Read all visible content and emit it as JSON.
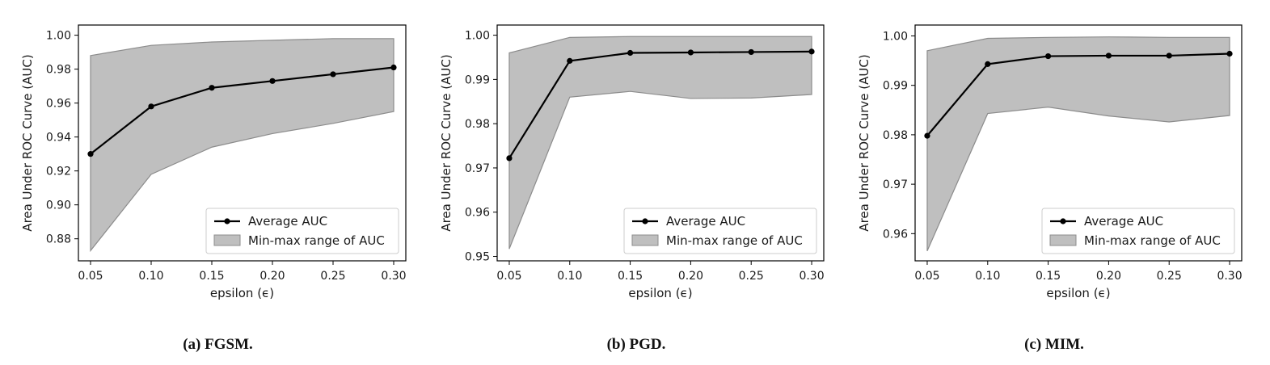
{
  "figure": {
    "captions": [
      "(a) FGSM.",
      "(b) PGD.",
      "(c) MIM."
    ]
  },
  "colors": {
    "line": "#000000",
    "band_fill": "#bfbfbf",
    "band_stroke": "#8c8c8c"
  },
  "chart_data": [
    {
      "type": "area",
      "caption": "(a) FGSM.",
      "xlabel": "epsilon (ϵ)",
      "ylabel": "Area Under ROC Curve (AUC)",
      "x": [
        0.05,
        0.1,
        0.15,
        0.2,
        0.25,
        0.3
      ],
      "xticks": [
        "0.05",
        "0.10",
        "0.15",
        "0.20",
        "0.25",
        "0.30"
      ],
      "yticks": [
        "0.88",
        "0.90",
        "0.92",
        "0.94",
        "0.96",
        "0.98",
        "1.00"
      ],
      "ytick_values": [
        0.88,
        0.9,
        0.92,
        0.94,
        0.96,
        0.98,
        1.0
      ],
      "xlim": [
        0.04,
        0.31
      ],
      "ylim": [
        0.867,
        1.006
      ],
      "legend_position": "bottom-right",
      "series": [
        {
          "name": "Average AUC",
          "kind": "line",
          "values": [
            0.93,
            0.958,
            0.969,
            0.973,
            0.977,
            0.981
          ]
        },
        {
          "name": "Min-max range of AUC",
          "kind": "band",
          "min": [
            0.873,
            0.918,
            0.934,
            0.942,
            0.948,
            0.955
          ],
          "max": [
            0.988,
            0.994,
            0.996,
            0.997,
            0.998,
            0.998
          ]
        }
      ]
    },
    {
      "type": "area",
      "caption": "(b) PGD.",
      "xlabel": "epsilon (ϵ)",
      "ylabel": "Area Under ROC Curve (AUC)",
      "x": [
        0.05,
        0.1,
        0.15,
        0.2,
        0.25,
        0.3
      ],
      "xticks": [
        "0.05",
        "0.10",
        "0.15",
        "0.20",
        "0.25",
        "0.30"
      ],
      "yticks": [
        "0.95",
        "0.96",
        "0.97",
        "0.98",
        "0.99",
        "1.00"
      ],
      "ytick_values": [
        0.95,
        0.96,
        0.97,
        0.98,
        0.99,
        1.0
      ],
      "xlim": [
        0.04,
        0.31
      ],
      "ylim": [
        0.949,
        1.0023
      ],
      "legend_position": "bottom-right",
      "series": [
        {
          "name": "Average AUC",
          "kind": "line",
          "values": [
            0.9722,
            0.9942,
            0.996,
            0.9961,
            0.9962,
            0.9963
          ]
        },
        {
          "name": "Min-max range of AUC",
          "kind": "band",
          "min": [
            0.9517,
            0.986,
            0.9873,
            0.9857,
            0.9858,
            0.9866
          ],
          "max": [
            0.996,
            0.9995,
            0.9997,
            0.9997,
            0.9997,
            0.9997
          ]
        }
      ]
    },
    {
      "type": "area",
      "caption": "(c) MIM.",
      "xlabel": "epsilon (ϵ)",
      "ylabel": "Area Under ROC Curve (AUC)",
      "x": [
        0.05,
        0.1,
        0.15,
        0.2,
        0.25,
        0.3
      ],
      "xticks": [
        "0.05",
        "0.10",
        "0.15",
        "0.20",
        "0.25",
        "0.30"
      ],
      "yticks": [
        "0.96",
        "0.97",
        "0.98",
        "0.99",
        "1.00"
      ],
      "ytick_values": [
        0.96,
        0.97,
        0.98,
        0.99,
        1.0
      ],
      "xlim": [
        0.04,
        0.31
      ],
      "ylim": [
        0.9545,
        1.0022
      ],
      "legend_position": "bottom-right",
      "series": [
        {
          "name": "Average AUC",
          "kind": "line",
          "values": [
            0.9798,
            0.9943,
            0.9959,
            0.996,
            0.996,
            0.9964
          ]
        },
        {
          "name": "Min-max range of AUC",
          "kind": "band",
          "min": [
            0.9565,
            0.9843,
            0.9856,
            0.9838,
            0.9826,
            0.9839
          ],
          "max": [
            0.997,
            0.9995,
            0.9997,
            0.9998,
            0.9997,
            0.9997
          ]
        }
      ]
    }
  ]
}
